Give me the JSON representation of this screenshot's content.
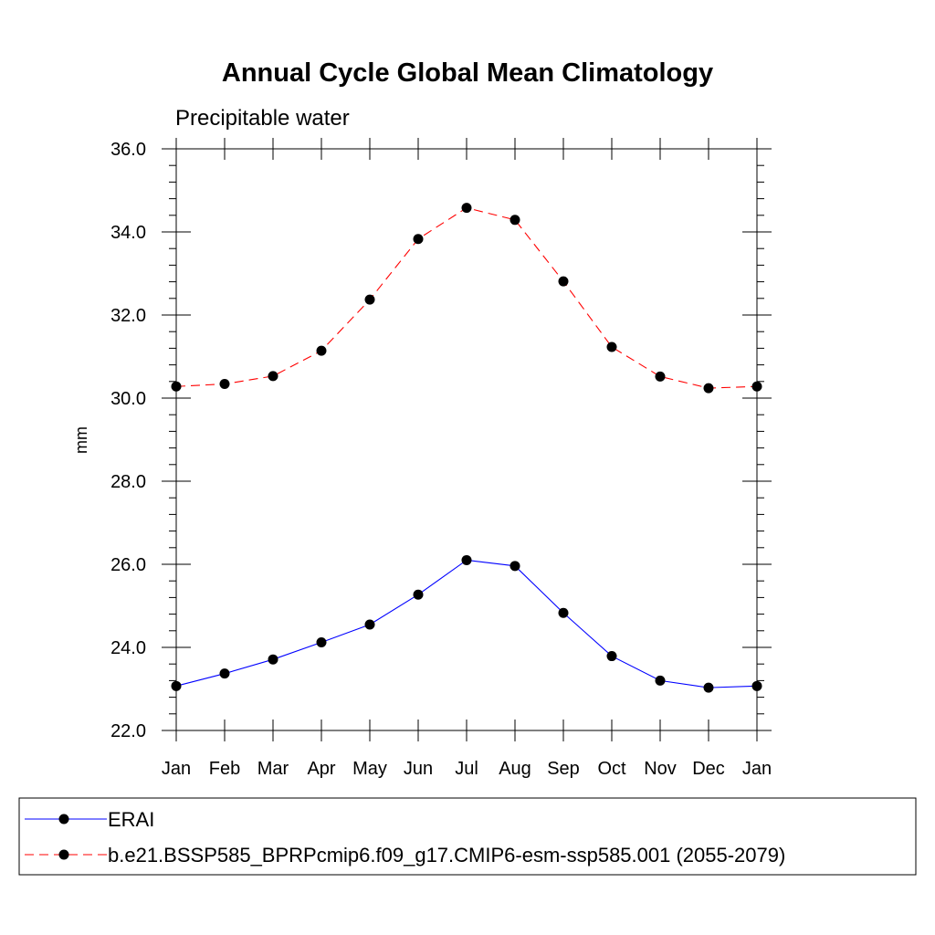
{
  "chart_data": {
    "type": "line",
    "title": "Annual Cycle Global Mean Climatology",
    "subtitle": "Precipitable water",
    "ylabel": "mm",
    "xlabel": "",
    "categories": [
      "Jan",
      "Feb",
      "Mar",
      "Apr",
      "May",
      "Jun",
      "Jul",
      "Aug",
      "Sep",
      "Oct",
      "Nov",
      "Dec",
      "Jan"
    ],
    "ylim": [
      22.0,
      36.0
    ],
    "yticks": [
      "22.0",
      "24.0",
      "26.0",
      "28.0",
      "30.0",
      "32.0",
      "34.0",
      "36.0"
    ],
    "grid": false,
    "legend_position": "bottom",
    "series": [
      {
        "name": "ERAI",
        "color": "#0000ff",
        "line_style": "solid",
        "marker": "filled-circle",
        "values": [
          23.07,
          23.37,
          23.71,
          24.12,
          24.55,
          25.27,
          26.1,
          25.96,
          24.83,
          23.79,
          23.2,
          23.03,
          23.07
        ]
      },
      {
        "name": "b.e21.BSSP585_BPRPcmip6.f09_g17.CMIP6-esm-ssp585.001 (2055-2079)",
        "color": "#ff0000",
        "line_style": "dashed",
        "marker": "filled-circle",
        "values": [
          30.28,
          30.34,
          30.53,
          31.14,
          32.37,
          33.83,
          34.58,
          34.29,
          32.81,
          31.23,
          30.52,
          30.24,
          30.28
        ]
      }
    ]
  }
}
